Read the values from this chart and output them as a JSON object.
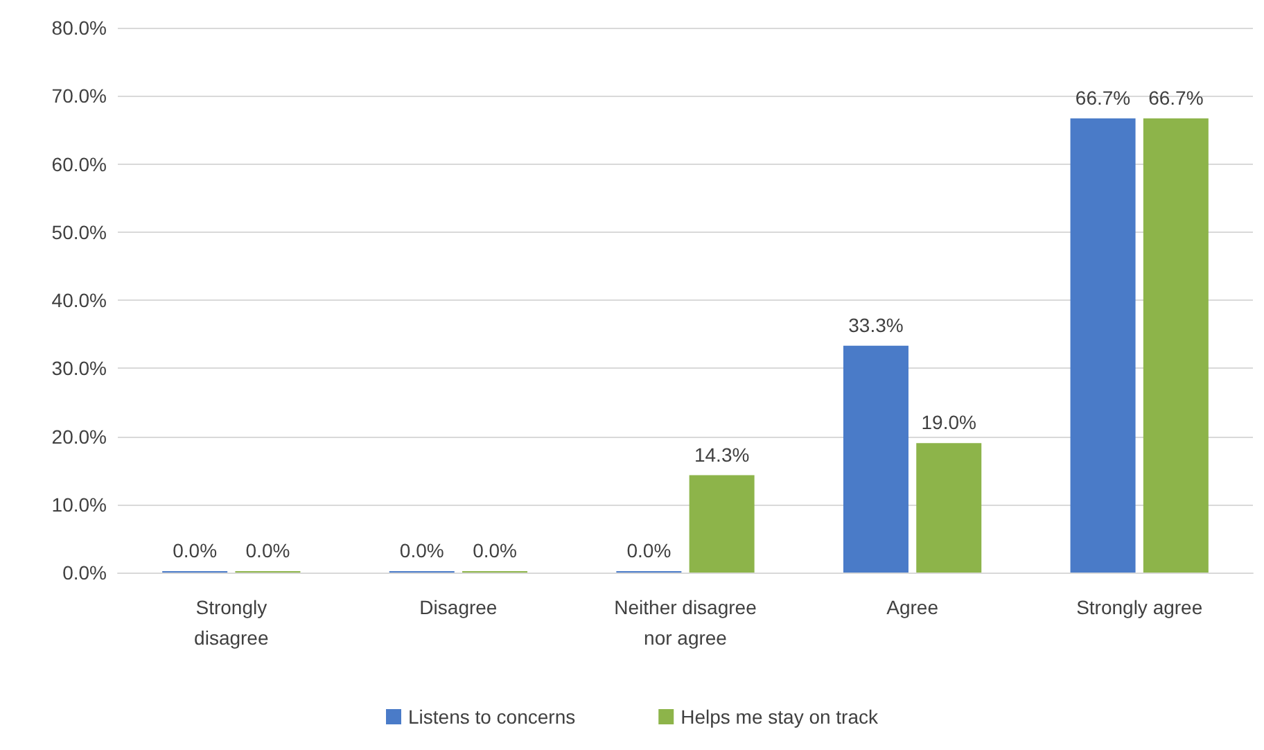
{
  "chart_data": {
    "type": "bar",
    "categories": [
      "Strongly\ndisagree",
      "Disagree",
      "Neither disagree\nnor agree",
      "Agree",
      "Strongly agree"
    ],
    "series": [
      {
        "name": "Listens to concerns",
        "color": "#4a7bc8",
        "values": [
          0,
          0,
          0,
          33.3,
          66.7
        ],
        "value_labels": [
          "0.0%",
          "0.0%",
          "0.0%",
          "33.3%",
          "66.7%"
        ]
      },
      {
        "name": "Helps me stay on track",
        "color": "#8db44a",
        "values": [
          0,
          0,
          14.3,
          19.0,
          66.7
        ],
        "value_labels": [
          "0.0%",
          "0.0%",
          "14.3%",
          "19.0%",
          "66.7%"
        ]
      }
    ],
    "ylim": [
      0,
      80
    ],
    "yticks": [
      {
        "value": 0,
        "label": "0.0%"
      },
      {
        "value": 10,
        "label": "10.0%"
      },
      {
        "value": 20,
        "label": "20.0%"
      },
      {
        "value": 30,
        "label": "30.0%"
      },
      {
        "value": 40,
        "label": "40.0%"
      },
      {
        "value": 50,
        "label": "50.0%"
      },
      {
        "value": 60,
        "label": "60.0%"
      },
      {
        "value": 70,
        "label": "70.0%"
      },
      {
        "value": 80,
        "label": "80.0%"
      }
    ],
    "grid": "y",
    "legend": "bottom"
  }
}
